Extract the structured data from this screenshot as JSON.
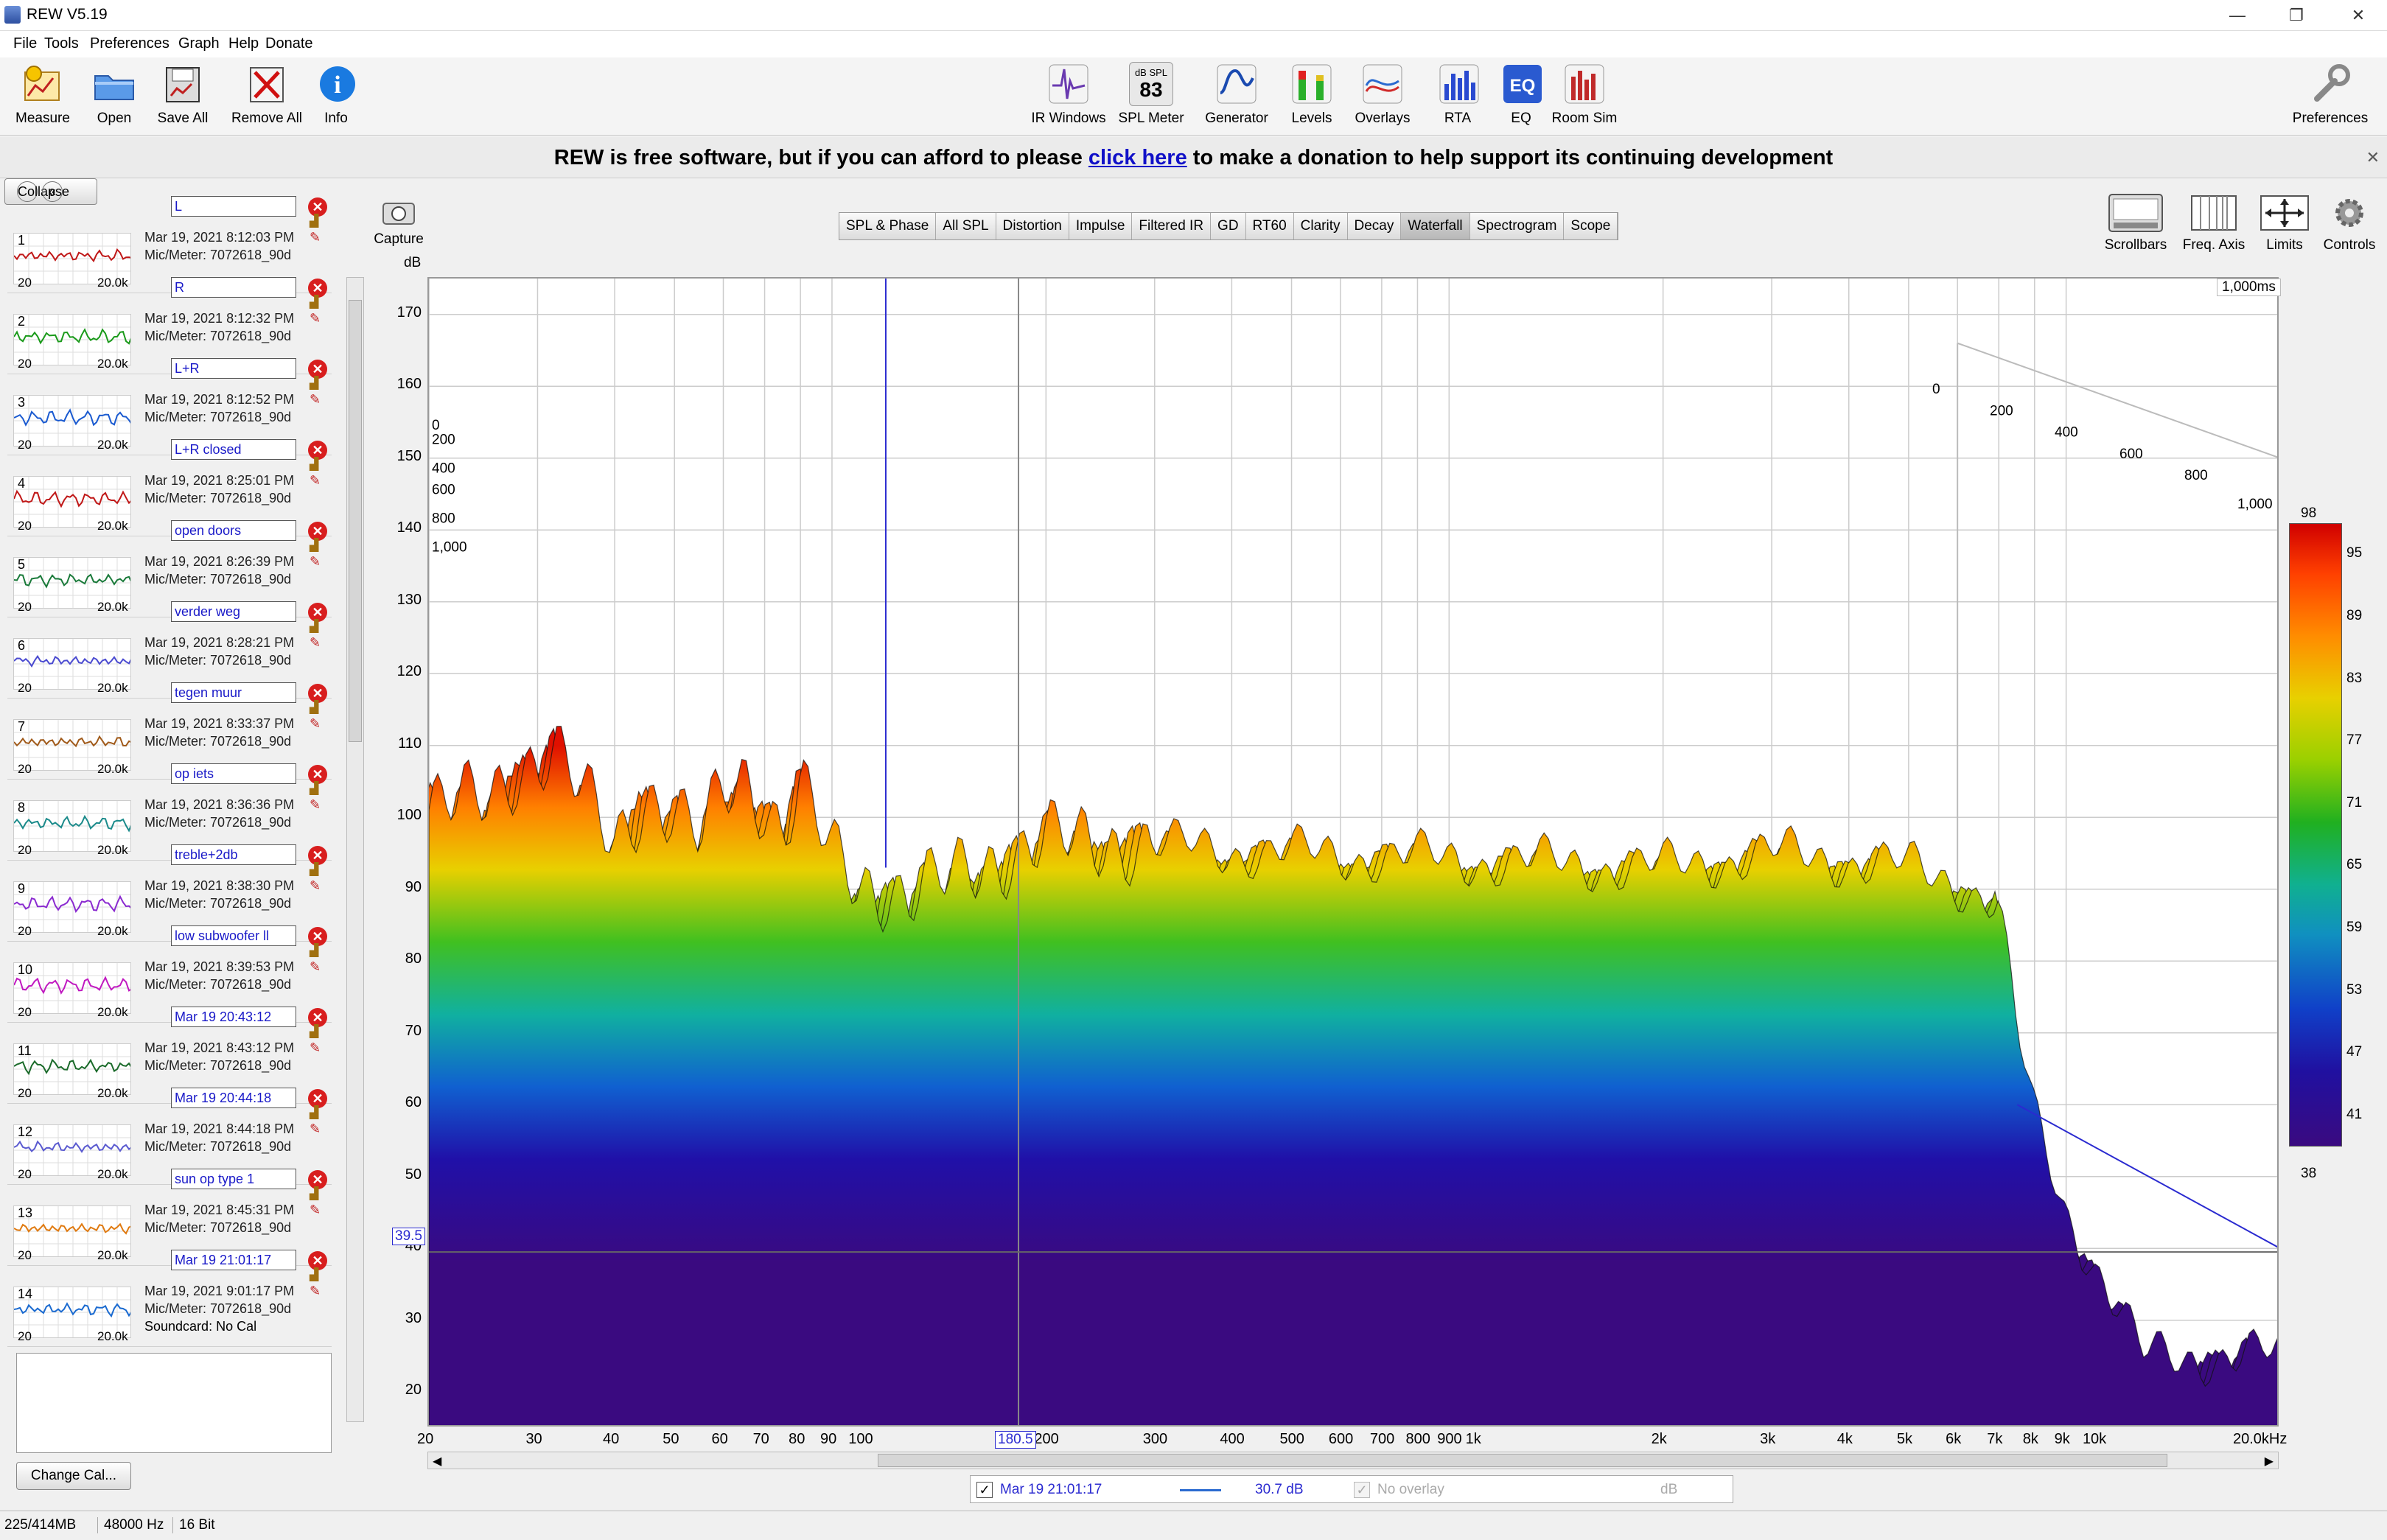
{
  "window": {
    "title": "REW V5.19",
    "minimize": "—",
    "restore": "❐",
    "close": "✕"
  },
  "menu": [
    "File",
    "Tools",
    "Preferences",
    "Graph",
    "Help",
    "Donate"
  ],
  "toolbar_left": [
    {
      "label": "Measure",
      "icon": "measure-icon"
    },
    {
      "label": "Open",
      "icon": "folder-open-icon"
    },
    {
      "label": "Save All",
      "icon": "save-all-icon"
    },
    {
      "label": "Remove All",
      "icon": "remove-all-icon"
    },
    {
      "label": "Info",
      "icon": "info-icon"
    }
  ],
  "toolbar_center": [
    {
      "label": "IR Windows",
      "icon": "ir-windows-icon"
    },
    {
      "label": "SPL Meter",
      "icon": "spl-meter-icon",
      "badge_top": "dB SPL",
      "badge_value": "83"
    },
    {
      "label": "Generator",
      "icon": "generator-icon"
    },
    {
      "label": "Levels",
      "icon": "levels-icon"
    },
    {
      "label": "Overlays",
      "icon": "overlays-icon"
    },
    {
      "label": "RTA",
      "icon": "rta-icon"
    },
    {
      "label": "EQ",
      "icon": "eq-icon"
    },
    {
      "label": "Room Sim",
      "icon": "room-sim-icon"
    }
  ],
  "toolbar_right": {
    "label": "Preferences",
    "icon": "wrench-icon"
  },
  "banner": {
    "before": "REW is free software, but if you can afford to please ",
    "link": "click here",
    "after": " to make a donation to help support its continuing development",
    "close": "✕"
  },
  "left_panel": {
    "collapse_label": "Collapse",
    "collapse_icon": "«",
    "change_cal": "Change Cal...",
    "x_min": "20",
    "x_max": "20.0k",
    "measurements": [
      {
        "num": "1",
        "name": "L",
        "date": "Mar 19, 2021 8:12:03 PM",
        "mic": "Mic/Meter: 7072618_90d",
        "color": "#c01818"
      },
      {
        "num": "2",
        "name": "R",
        "date": "Mar 19, 2021 8:12:32 PM",
        "mic": "Mic/Meter: 7072618_90d",
        "color": "#1a9a1a"
      },
      {
        "num": "3",
        "name": "L+R",
        "date": "Mar 19, 2021 8:12:52 PM",
        "mic": "Mic/Meter: 7072618_90d",
        "color": "#1a5ad0"
      },
      {
        "num": "4",
        "name": "L+R closed",
        "date": "Mar 19, 2021 8:25:01 PM",
        "mic": "Mic/Meter: 7072618_90d",
        "color": "#c01818"
      },
      {
        "num": "5",
        "name": "open doors",
        "date": "Mar 19, 2021 8:26:39 PM",
        "mic": "Mic/Meter: 7072618_90d",
        "color": "#1a7a3a"
      },
      {
        "num": "6",
        "name": "verder weg",
        "date": "Mar 19, 2021 8:28:21 PM",
        "mic": "Mic/Meter: 7072618_90d",
        "color": "#4a4ad0"
      },
      {
        "num": "7",
        "name": "tegen muur",
        "date": "Mar 19, 2021 8:33:37 PM",
        "mic": "Mic/Meter: 7072618_90d",
        "color": "#a05a1a"
      },
      {
        "num": "8",
        "name": "op iets",
        "date": "Mar 19, 2021 8:36:36 PM",
        "mic": "Mic/Meter: 7072618_90d",
        "color": "#1a8a8a"
      },
      {
        "num": "9",
        "name": "treble+2db",
        "date": "Mar 19, 2021 8:38:30 PM",
        "mic": "Mic/Meter: 7072618_90d",
        "color": "#8a2ad0"
      },
      {
        "num": "10",
        "name": "low subwoofer  ll",
        "date": "Mar 19, 2021 8:39:53 PM",
        "mic": "Mic/Meter: 7072618_90d",
        "color": "#c018c0"
      },
      {
        "num": "11",
        "name": "Mar 19 20:43:12",
        "date": "Mar 19, 2021 8:43:12 PM",
        "mic": "Mic/Meter: 7072618_90d",
        "color": "#1a6a2a"
      },
      {
        "num": "12",
        "name": "Mar 19 20:44:18",
        "date": "Mar 19, 2021 8:44:18 PM",
        "mic": "Mic/Meter: 7072618_90d",
        "color": "#5a5ad0"
      },
      {
        "num": "13",
        "name": "sun op type 1",
        "date": "Mar 19, 2021 8:45:31 PM",
        "mic": "Mic/Meter: 7072618_90d",
        "color": "#e07a10"
      },
      {
        "num": "14",
        "name": "Mar 19 21:01:17",
        "date": "Mar 19, 2021 9:01:17 PM",
        "mic": "Mic/Meter: 7072618_90d",
        "extra": "Soundcard: No Cal",
        "color": "#1a6ad0"
      }
    ]
  },
  "graph_tabs": [
    "SPL & Phase",
    "All SPL",
    "Distortion",
    "Impulse",
    "Filtered IR",
    "GD",
    "RT60",
    "Clarity",
    "Decay",
    "Waterfall",
    "Spectrogram",
    "Scope"
  ],
  "active_tab": "Waterfall",
  "capture": {
    "label": "Capture",
    "icon": "camera-icon"
  },
  "right_tools": [
    {
      "label": "Scrollbars",
      "icon": "scrollbars-icon"
    },
    {
      "label": "Freq. Axis",
      "icon": "freq-axis-icon"
    },
    {
      "label": "Limits",
      "icon": "limits-icon"
    },
    {
      "label": "Controls",
      "icon": "gear-icon"
    }
  ],
  "chart_data": {
    "type": "area",
    "subtype": "waterfall",
    "ylabel": "dB",
    "ylim": [
      15,
      175
    ],
    "y_ticks": [
      20,
      30,
      40,
      50,
      60,
      70,
      80,
      90,
      100,
      110,
      120,
      130,
      140,
      150,
      160,
      170
    ],
    "x_scale": "log",
    "xlim": [
      20,
      20000
    ],
    "x_ticks": [
      "20",
      "30",
      "40",
      "50",
      "60",
      "70",
      "80",
      "90",
      "100",
      "200",
      "300",
      "400",
      "500",
      "600",
      "700",
      "800",
      "900",
      "1k",
      "2k",
      "3k",
      "4k",
      "5k",
      "6k",
      "7k",
      "8k",
      "9k",
      "10k",
      "20.0kHz"
    ],
    "x_tick_values": [
      20,
      30,
      40,
      50,
      60,
      70,
      80,
      90,
      100,
      200,
      300,
      400,
      500,
      600,
      700,
      800,
      900,
      1000,
      2000,
      3000,
      4000,
      5000,
      6000,
      7000,
      8000,
      9000,
      10000,
      20000
    ],
    "time_ticks": [
      "0",
      "200",
      "400",
      "600",
      "800",
      "1,000"
    ],
    "time_axis_label": "1,000ms",
    "cursor_x": "180.5",
    "cursor_y": "39.5",
    "front_slice": {
      "freq": [
        20,
        25,
        28,
        32,
        35,
        40,
        45,
        50,
        55,
        60,
        65,
        70,
        75,
        80,
        90,
        100,
        120,
        150,
        180,
        200,
        300,
        500,
        1000,
        2000,
        3000,
        4000,
        5000,
        6000,
        7000,
        7500,
        8000,
        9000,
        10000,
        12000
      ],
      "spl": [
        101,
        103,
        107,
        109,
        104,
        97,
        103,
        100,
        97,
        104,
        106,
        102,
        98,
        104,
        95,
        91,
        89,
        93,
        95,
        97,
        96,
        95,
        94,
        93,
        95,
        94,
        93,
        91,
        88,
        70,
        58,
        45,
        38,
        25
      ]
    },
    "colorbar": {
      "min": 38,
      "max": 98,
      "ticks": [
        98,
        95,
        89,
        83,
        77,
        71,
        65,
        59,
        53,
        47,
        41,
        38
      ]
    }
  },
  "legend": {
    "name": "Mar 19 21:01:17",
    "value": "30.7 dB",
    "overlay": "No overlay",
    "overlay_unit": "dB"
  },
  "status": {
    "memory": "225/414MB",
    "rate": "48000 Hz",
    "bits": "16 Bit"
  }
}
